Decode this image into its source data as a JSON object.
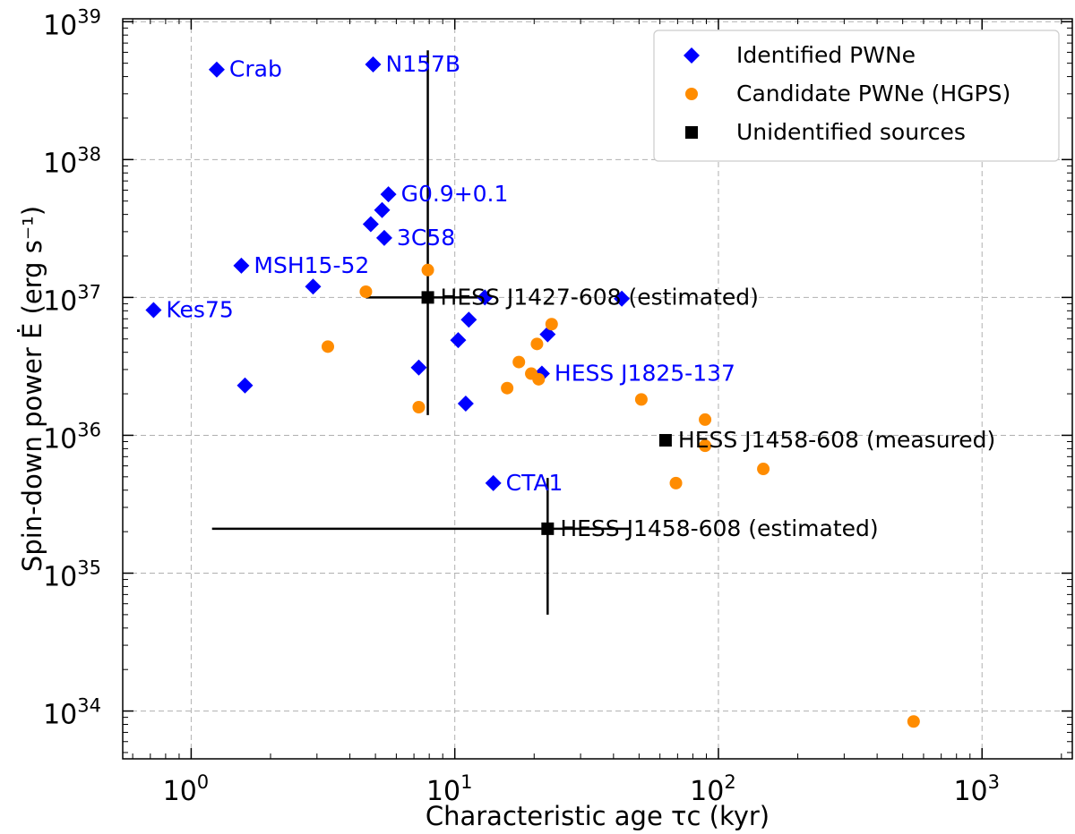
{
  "chart_data": {
    "type": "scatter",
    "xlabel": "Characteristic age τc (kyr)",
    "ylabel": "Spin-down power Ė (erg s⁻¹)",
    "x_scale": "log",
    "y_scale": "log",
    "xlim": [
      0.55,
      2200
    ],
    "ylim": [
      4.5e+33,
      1.05e+39
    ],
    "grid": true,
    "legend_position": "top-right",
    "x_ticks": [
      {
        "value": 1,
        "base": "10",
        "exp": "0"
      },
      {
        "value": 10,
        "base": "10",
        "exp": "1"
      },
      {
        "value": 100,
        "base": "10",
        "exp": "2"
      },
      {
        "value": 1000,
        "base": "10",
        "exp": "3"
      }
    ],
    "y_ticks": [
      {
        "value": 1e+34,
        "base": "10",
        "exp": "34"
      },
      {
        "value": 1e+35,
        "base": "10",
        "exp": "35"
      },
      {
        "value": 1e+36,
        "base": "10",
        "exp": "36"
      },
      {
        "value": 1e+37,
        "base": "10",
        "exp": "37"
      },
      {
        "value": 1e+38,
        "base": "10",
        "exp": "38"
      },
      {
        "value": 1e+39,
        "base": "10",
        "exp": "39"
      }
    ],
    "series": [
      {
        "name": "Identified PWNe",
        "marker": "diamond",
        "color": "#0000ff",
        "points": [
          {
            "x": 1.25,
            "y": 4.5e+38,
            "label": "Crab"
          },
          {
            "x": 4.9,
            "y": 4.9e+38,
            "label": "N157B"
          },
          {
            "x": 5.6,
            "y": 5.6e+37,
            "label": "G0.9+0.1"
          },
          {
            "x": 5.3,
            "y": 4.3e+37
          },
          {
            "x": 4.8,
            "y": 3.4e+37
          },
          {
            "x": 5.4,
            "y": 2.7e+37,
            "label": "3C58"
          },
          {
            "x": 1.55,
            "y": 1.7e+37,
            "label": "MSH15-52"
          },
          {
            "x": 2.9,
            "y": 1.2e+37
          },
          {
            "x": 0.72,
            "y": 8.1e+36,
            "label": "Kes75"
          },
          {
            "x": 13.0,
            "y": 1e+37
          },
          {
            "x": 43,
            "y": 9.8e+36
          },
          {
            "x": 11.3,
            "y": 6.9e+36
          },
          {
            "x": 10.3,
            "y": 4.9e+36
          },
          {
            "x": 22.5,
            "y": 5.4e+36
          },
          {
            "x": 7.3,
            "y": 3.1e+36
          },
          {
            "x": 21.4,
            "y": 2.8e+36,
            "label": "HESS J1825-137"
          },
          {
            "x": 1.6,
            "y": 2.3e+36
          },
          {
            "x": 11.0,
            "y": 1.7e+36
          },
          {
            "x": 14.0,
            "y": 4.5e+35,
            "label": "CTA1"
          }
        ]
      },
      {
        "name": "Candidate PWNe (HGPS)",
        "marker": "circle",
        "color": "#ff8c00",
        "points": [
          {
            "x": 7.9,
            "y": 1.58e+37
          },
          {
            "x": 4.6,
            "y": 1.1e+37
          },
          {
            "x": 3.3,
            "y": 4.4e+36
          },
          {
            "x": 23.3,
            "y": 6.4e+36
          },
          {
            "x": 20.5,
            "y": 4.6e+36
          },
          {
            "x": 17.5,
            "y": 3.4e+36
          },
          {
            "x": 19.5,
            "y": 2.8e+36
          },
          {
            "x": 20.8,
            "y": 2.55e+36
          },
          {
            "x": 15.8,
            "y": 2.2e+36
          },
          {
            "x": 7.3,
            "y": 1.6e+36
          },
          {
            "x": 51,
            "y": 1.82e+36
          },
          {
            "x": 89,
            "y": 1.3e+36
          },
          {
            "x": 89,
            "y": 8.4e+35
          },
          {
            "x": 148,
            "y": 5.7e+35
          },
          {
            "x": 69,
            "y": 4.5e+35
          },
          {
            "x": 550,
            "y": 8.4e+33
          }
        ]
      },
      {
        "name": "Unidentified sources",
        "marker": "square",
        "color": "#000000",
        "points": [
          {
            "x": 7.9,
            "y": 1e+37,
            "label": "HESS J1427-608 (estimated)",
            "x_err": [
              4.6,
              13.6
            ],
            "y_err": [
              1.4e+36,
              6.2e+38
            ]
          },
          {
            "x": 63,
            "y": 9.2e+35,
            "label": "HESS J1458-608 (measured)"
          },
          {
            "x": 22.5,
            "y": 2.1e+35,
            "label": "HESS J1458-608 (estimated)",
            "x_err": [
              1.2,
              46
            ],
            "y_err": [
              5e+34,
              4.9e+35
            ]
          }
        ]
      }
    ]
  }
}
